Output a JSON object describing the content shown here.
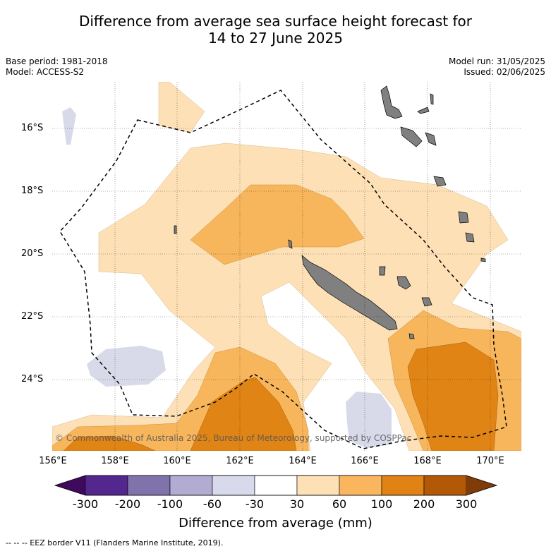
{
  "title": {
    "line1": "Difference from average sea surface height forecast for",
    "line2": "14 to 27 June 2025"
  },
  "meta": {
    "base_period": "Base period: 1981-2018",
    "model": "Model: ACCESS-S2",
    "model_run": "Model run: 31/05/2025",
    "issued": "Issued: 02/06/2025"
  },
  "axes": {
    "lon_ticks": [
      "156°E",
      "158°E",
      "160°E",
      "162°E",
      "164°E",
      "166°E",
      "168°E",
      "170°E"
    ],
    "lat_ticks": [
      "16°S",
      "18°S",
      "20°S",
      "22°S",
      "24°S"
    ]
  },
  "copyright": "© Commonwealth of Australia 2025, Bureau of Meteorology, supported by COSPPac",
  "colorbar": {
    "labels": [
      "-300",
      "-200",
      "-100",
      "-60",
      "-30",
      "30",
      "60",
      "100",
      "200",
      "300"
    ],
    "colors": [
      "#3f0a5e",
      "#54278f",
      "#8073ac",
      "#b2abd2",
      "#d8daeb",
      "#ffffff",
      "#fee0b6",
      "#f9b65e",
      "#e08214",
      "#b35806",
      "#7f3b08"
    ],
    "title": "Difference from average (mm)"
  },
  "map_colors": {
    "band_30_60": "#fde0b5",
    "band_60_100": "#f8b65c",
    "band_100_200": "#e08416",
    "band_neg_60_30": "#d8daea",
    "land": "#808080",
    "eez": "#000000"
  },
  "footnote": "-- -- -- EEZ border V11 (Flanders Marine Institute, 2019)."
}
